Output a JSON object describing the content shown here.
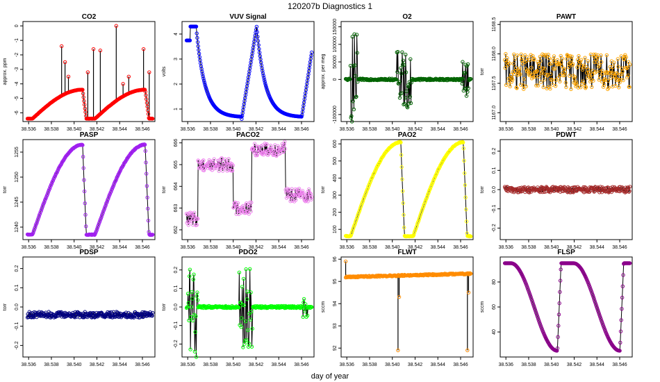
{
  "figure": {
    "title": "120207b   Diagnostics 1",
    "xlabel": "day of year"
  },
  "chart_data": [
    {
      "type": "line",
      "title": "CO2",
      "ylabel": "approx. ppm",
      "xlim": [
        38.5355,
        38.5471
      ],
      "ylim": [
        -6.6,
        0.3
      ],
      "xticks": [
        "38.536",
        "38.538",
        "38.540",
        "38.542",
        "38.544",
        "38.546"
      ],
      "yticks": [
        "0",
        "-1",
        "-2",
        "-3",
        "-4",
        "-5",
        "-6"
      ],
      "ytick_values": [
        0,
        -1,
        -2,
        -3,
        -4,
        -5,
        -6
      ],
      "color": "#ff0000",
      "shape": "twin_hump",
      "x_range": [
        38.5359,
        38.5469
      ],
      "y_min": -6.4,
      "y_max": -4.4,
      "spikes": [
        {
          "x": 38.5389,
          "y": -1.4
        },
        {
          "x": 38.5392,
          "y": -2.5
        },
        {
          "x": 38.5395,
          "y": -3.5
        },
        {
          "x": 38.5412,
          "y": -3.2
        },
        {
          "x": 38.5417,
          "y": -1.6
        },
        {
          "x": 38.5423,
          "y": -1.7
        },
        {
          "x": 38.5437,
          "y": 0.0
        },
        {
          "x": 38.5443,
          "y": -4.0
        },
        {
          "x": 38.5448,
          "y": -3.5
        },
        {
          "x": 38.5461,
          "y": -1.6
        },
        {
          "x": 38.5466,
          "y": -3.2
        }
      ]
    },
    {
      "type": "line",
      "title": "VUV Signal",
      "ylabel": "volts",
      "xlim": [
        38.5355,
        38.5471
      ],
      "ylim": [
        0.5,
        4.5
      ],
      "xticks": [
        "38.536",
        "38.538",
        "38.540",
        "38.542",
        "38.544",
        "38.546"
      ],
      "yticks": [
        "1",
        "2",
        "3",
        "4"
      ],
      "ytick_values": [
        1,
        2,
        3,
        4
      ],
      "color": "#0000ff",
      "shape": "sawtooth",
      "x_range": [
        38.5359,
        38.5469
      ],
      "y_min": 0.6,
      "y_max": 4.3
    },
    {
      "type": "line",
      "title": "O2",
      "ylabel": "approx. per meg",
      "xlim": [
        38.5355,
        38.5471
      ],
      "ylim": [
        -120000,
        165000
      ],
      "xticks": [
        "38.536",
        "38.538",
        "38.540",
        "38.542",
        "38.544",
        "38.546"
      ],
      "yticks": [
        "150000",
        "100000",
        "50000",
        "0",
        "-100000"
      ],
      "ytick_values": [
        150000,
        100000,
        50000,
        0,
        -100000
      ],
      "color": "#006400",
      "shape": "noisy_bursts",
      "x_range": [
        38.5359,
        38.5469
      ],
      "center": 0,
      "noise": 2500,
      "bursts": [
        {
          "x0": 38.5363,
          "x1": 38.537,
          "amp": 130000
        },
        {
          "x0": 38.5404,
          "x1": 38.5417,
          "amp": 80000
        },
        {
          "x0": 38.5461,
          "x1": 38.5467,
          "amp": 50000
        }
      ]
    },
    {
      "type": "line",
      "title": "PAWT",
      "ylabel": "torr",
      "xlim": [
        38.5355,
        38.5471
      ],
      "ylim": [
        1166.85,
        1168.55
      ],
      "xticks": [
        "38.536",
        "38.538",
        "38.540",
        "38.542",
        "38.544",
        "38.546"
      ],
      "yticks": [
        "1168.5",
        "1168.0",
        "1167.5",
        "1167.0"
      ],
      "ytick_values": [
        1168.5,
        1168.0,
        1167.5,
        1167.0
      ],
      "color": "#ffa500",
      "shape": "noise",
      "x_range": [
        38.5359,
        38.5469
      ],
      "center": 1167.7,
      "noise": 0.3
    },
    {
      "type": "line",
      "title": "PASP",
      "ylabel": "torr",
      "xlim": [
        38.5355,
        38.5471
      ],
      "ylim": [
        1237.5,
        1257.5
      ],
      "xticks": [
        "38.536",
        "38.538",
        "38.540",
        "38.542",
        "38.544",
        "38.546"
      ],
      "yticks": [
        "1255",
        "1250",
        "1245",
        "1240"
      ],
      "ytick_values": [
        1255,
        1250,
        1245,
        1240
      ],
      "color": "#a020f0",
      "shape": "twin_hump",
      "x_range": [
        38.5359,
        38.5469
      ],
      "y_min": 1238.5,
      "y_max": 1256.5
    },
    {
      "type": "line",
      "title": "PACO2",
      "ylabel": "torr",
      "xlim": [
        38.5355,
        38.5471
      ],
      "ylim": [
        661.55,
        666.15
      ],
      "xticks": [
        "38.536",
        "38.538",
        "38.540",
        "38.542",
        "38.544",
        "38.546"
      ],
      "yticks": [
        "666",
        "665",
        "664",
        "663",
        "662"
      ],
      "ytick_values": [
        666,
        665,
        664,
        663,
        662
      ],
      "color": "#ee82ee",
      "shape": "steps",
      "x_range": [
        38.5359,
        38.5469
      ],
      "noise": 0.3,
      "levels": [
        {
          "x0": 38.5359,
          "x1": 38.5369,
          "y": 662.5
        },
        {
          "x0": 38.5369,
          "x1": 38.54,
          "y": 665.0
        },
        {
          "x0": 38.54,
          "x1": 38.5416,
          "y": 663.0
        },
        {
          "x0": 38.5416,
          "x1": 38.5442,
          "y": 665.7
        },
        {
          "x0": 38.5442,
          "x1": 38.5446,
          "y": 665.8
        },
        {
          "x0": 38.5446,
          "x1": 38.5469,
          "y": 663.6
        }
      ]
    },
    {
      "type": "line",
      "title": "PAO2",
      "ylabel": "torr",
      "xlim": [
        38.5355,
        38.5471
      ],
      "ylim": [
        40,
        625
      ],
      "xticks": [
        "38.536",
        "38.538",
        "38.540",
        "38.542",
        "38.544",
        "38.546"
      ],
      "yticks": [
        "600",
        "500",
        "400",
        "300",
        "200",
        "100"
      ],
      "ytick_values": [
        600,
        500,
        400,
        300,
        200,
        100
      ],
      "color": "#ffff00",
      "shape": "twin_hump",
      "x_range": [
        38.5359,
        38.5469
      ],
      "y_min": 60,
      "y_max": 610
    },
    {
      "type": "line",
      "title": "PDWT",
      "ylabel": "torr",
      "xlim": [
        38.5355,
        38.5471
      ],
      "ylim": [
        -0.26,
        0.26
      ],
      "xticks": [
        "38.536",
        "38.538",
        "38.540",
        "38.542",
        "38.544",
        "38.546"
      ],
      "yticks": [
        "0.2",
        "0.1",
        "0.0",
        "-0.1",
        "-0.2"
      ],
      "ytick_values": [
        0.2,
        0.1,
        0.0,
        -0.1,
        -0.2
      ],
      "color": "#a52a2a",
      "shape": "noise",
      "x_range": [
        38.5359,
        38.5469
      ],
      "center": 0.0,
      "noise": 0.015
    },
    {
      "type": "line",
      "title": "PDSP",
      "ylabel": "torr",
      "xlim": [
        38.5355,
        38.5471
      ],
      "ylim": [
        -0.26,
        0.26
      ],
      "xticks": [
        "38.536",
        "38.538",
        "38.540",
        "38.542",
        "38.544",
        "38.546"
      ],
      "yticks": [
        "0.2",
        "0.1",
        "0.0",
        "-0.1",
        "-0.2"
      ],
      "ytick_values": [
        0.2,
        0.1,
        0.0,
        -0.1,
        -0.2
      ],
      "color": "#000080",
      "shape": "noise",
      "x_range": [
        38.5359,
        38.5469
      ],
      "center": -0.04,
      "noise": 0.015
    },
    {
      "type": "line",
      "title": "PDO2",
      "ylabel": "torr",
      "xlim": [
        38.5355,
        38.5471
      ],
      "ylim": [
        -0.27,
        0.27
      ],
      "xticks": [
        "38.536",
        "38.538",
        "38.540",
        "38.542",
        "38.544",
        "38.546"
      ],
      "yticks": [
        "0.2",
        "0.1",
        "0.0",
        "-0.1",
        "-0.2"
      ],
      "ytick_values": [
        0.2,
        0.1,
        0.0,
        -0.1,
        -0.2
      ],
      "color": "#00ff00",
      "shape": "noisy_bursts",
      "x_range": [
        38.5359,
        38.5469
      ],
      "center": 0.0,
      "noise": 0.006,
      "bursts": [
        {
          "x0": 38.536,
          "x1": 38.5369,
          "amp": 0.28
        },
        {
          "x0": 38.5405,
          "x1": 38.5417,
          "amp": 0.22
        },
        {
          "x0": 38.5461,
          "x1": 38.5466,
          "amp": 0.06
        }
      ]
    },
    {
      "type": "line",
      "title": "FLWT",
      "ylabel": "sccm",
      "xlim": [
        38.5355,
        38.5471
      ],
      "ylim": [
        91.6,
        96.1
      ],
      "xticks": [
        "38.536",
        "38.538",
        "38.540",
        "38.542",
        "38.544",
        "38.546"
      ],
      "yticks": [
        "96",
        "95",
        "94",
        "93",
        "92"
      ],
      "ytick_values": [
        96,
        95,
        94,
        93,
        92
      ],
      "color": "#ff8c00",
      "shape": "drift",
      "x_range": [
        38.5359,
        38.5469
      ],
      "y_start": 95.2,
      "y_end": 95.35,
      "noise": 0.03,
      "spikes": [
        {
          "x": 38.5359,
          "y": 95.9
        },
        {
          "x": 38.5405,
          "y": 91.9
        },
        {
          "x": 38.5406,
          "y": 94.3
        },
        {
          "x": 38.5466,
          "y": 91.9
        },
        {
          "x": 38.5467,
          "y": 94.5
        }
      ]
    },
    {
      "type": "line",
      "title": "FLSP",
      "ylabel": "sccm",
      "xlim": [
        38.5355,
        38.5471
      ],
      "ylim": [
        20,
        100
      ],
      "xticks": [
        "38.536",
        "38.538",
        "38.540",
        "38.542",
        "38.544",
        "38.546"
      ],
      "yticks": [
        "80",
        "60",
        "40"
      ],
      "ytick_values": [
        80,
        60,
        40
      ],
      "color": "#8b008b",
      "shape": "inverse_hump",
      "x_range": [
        38.5359,
        38.5469
      ],
      "y_min": 25,
      "y_max": 95
    }
  ]
}
